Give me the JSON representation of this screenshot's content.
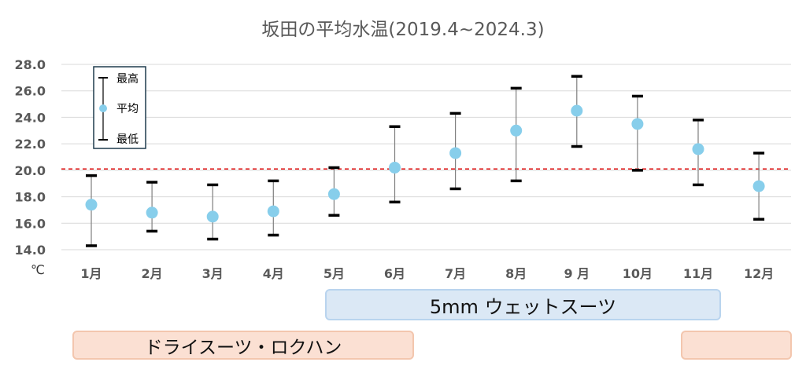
{
  "chart_data": {
    "type": "errorbar",
    "title": "坂田の平均水温(2019.4~2024.3)",
    "unit": "℃",
    "categories": [
      "1月",
      "2月",
      "3月",
      "4月",
      "5月",
      "6月",
      "7月",
      "8月",
      "9 月",
      "10月",
      "11月",
      "12月"
    ],
    "series": [
      {
        "name": "最高",
        "values": [
          19.6,
          19.1,
          18.9,
          19.2,
          20.2,
          23.3,
          24.3,
          26.2,
          27.1,
          25.6,
          23.8,
          21.3
        ]
      },
      {
        "name": "平均",
        "values": [
          17.4,
          16.8,
          16.5,
          16.9,
          18.2,
          20.2,
          21.3,
          23.0,
          24.5,
          23.5,
          21.6,
          18.8
        ]
      },
      {
        "name": "最低",
        "values": [
          14.3,
          15.4,
          14.8,
          15.1,
          16.6,
          17.6,
          18.6,
          19.2,
          21.8,
          20.0,
          18.9,
          16.3
        ]
      }
    ],
    "yticks": [
      "14.0",
      "16.0",
      "18.0",
      "20.0",
      "22.0",
      "24.0",
      "26.0",
      "28.0"
    ],
    "ylim": [
      14,
      28
    ],
    "reference_line": {
      "value": 20.1,
      "style": "dashed",
      "color": "#e02020"
    },
    "legend": {
      "max_label": "最高",
      "avg_label": "平均",
      "min_label": "最低",
      "position": "top-left"
    },
    "colors": {
      "marker": "#87ceeb",
      "whisker": "#000000",
      "stem": "#7f7f7f",
      "grid": "#d9d9d9"
    }
  },
  "bands": {
    "wetsuit": "5mm ウェットスーツ",
    "drysuit": "ドライスーツ・ロクハン"
  }
}
